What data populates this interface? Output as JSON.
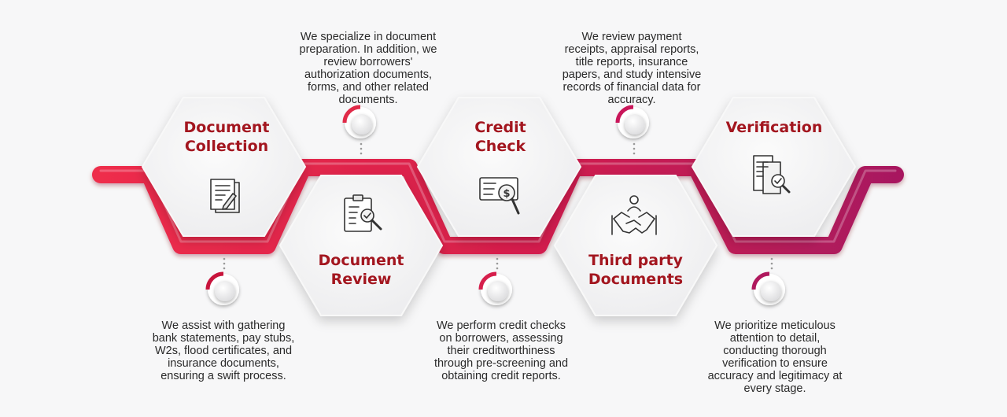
{
  "steps": [
    {
      "id": "document-collection",
      "title_line1": "Document",
      "title_line2": "Collection",
      "icon": "document-pen-icon",
      "description": [
        "We assist with gathering",
        "bank statements, pay stubs,",
        "W2s, flood certificates, and",
        "insurance documents,",
        "ensuring a swift process."
      ]
    },
    {
      "id": "document-review",
      "title_line1": "Document",
      "title_line2": "Review",
      "icon": "clipboard-magnifier-icon",
      "description": [
        "We specialize in document",
        "preparation. In addition, we",
        "review borrowers'",
        "authorization documents,",
        "forms, and other related",
        "documents."
      ]
    },
    {
      "id": "credit-check",
      "title_line1": "Credit",
      "title_line2": "Check",
      "icon": "check-dollar-magnifier-icon",
      "description": [
        "We perform credit checks",
        "on borrowers, assessing",
        "their creditworthiness",
        "through pre-screening and",
        "obtaining credit reports."
      ]
    },
    {
      "id": "third-party-documents",
      "title_line1": "Third party",
      "title_line2": "Documents",
      "icon": "handshake-icon",
      "description": [
        "We review payment",
        "receipts, appraisal reports,",
        "title reports, insurance",
        "papers, and study intensive",
        "records of financial data for",
        "accuracy."
      ]
    },
    {
      "id": "verification",
      "title_line1": "Verification",
      "title_line2": "",
      "icon": "document-verify-icon",
      "description": [
        "We prioritize meticulous",
        "attention to detail,",
        "conducting thorough",
        "verification to ensure",
        "accuracy and legitimacy at",
        "every stage."
      ]
    }
  ],
  "colors": {
    "accent": "#a3161f",
    "ribbon_start": "#ee2d4b",
    "ribbon_end": "#a8195f",
    "hex_fill": "#f2f2f3",
    "text": "#2a2a2a"
  }
}
